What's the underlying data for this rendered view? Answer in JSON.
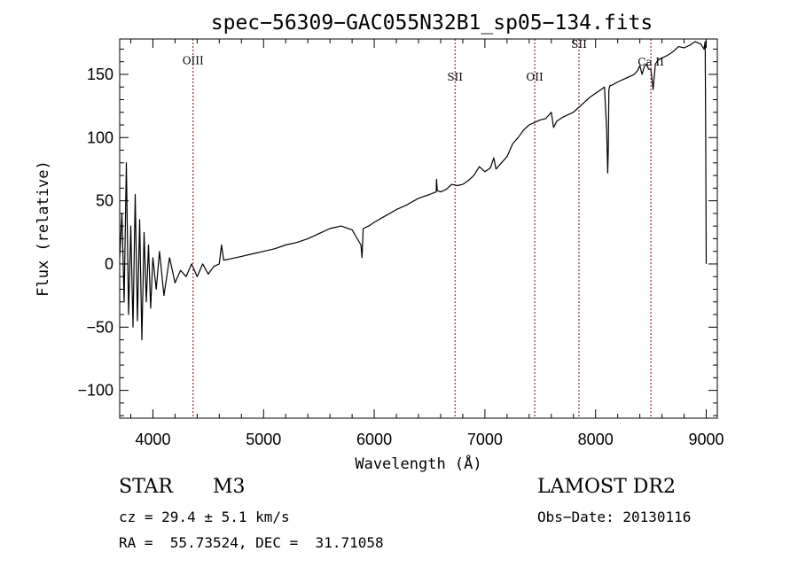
{
  "chart_data": {
    "type": "line",
    "title": "spec−56309−GAC055N32B1_sp05−134.fits",
    "xlabel": "Wavelength (Å)",
    "ylabel": "Flux (relative)",
    "xlim": [
      3700,
      9100
    ],
    "ylim": [
      -122,
      178
    ],
    "x_ticks": [
      4000,
      5000,
      6000,
      7000,
      8000,
      9000
    ],
    "y_ticks": [
      -100,
      -50,
      0,
      50,
      100,
      150
    ],
    "x_tick_labels": [
      "4000",
      "5000",
      "6000",
      "7000",
      "8000",
      "9000"
    ],
    "y_tick_labels": [
      "−100",
      "−50",
      "0",
      "50",
      "100",
      "150"
    ],
    "grid": false,
    "line_color": "#000000",
    "marker_color": "#8b0000",
    "spectral_lines": [
      {
        "label": "OIII",
        "x": 4363,
        "label_y": 158
      },
      {
        "label": "SII",
        "x": 6730,
        "label_y": 145
      },
      {
        "label": "OII",
        "x": 7450,
        "label_y": 145
      },
      {
        "label": "SII",
        "x": 7850,
        "label_y": 171
      },
      {
        "label": "Ca II",
        "x": 8500,
        "label_y": 157
      }
    ],
    "series": [
      {
        "x": [
          3700,
          3720,
          3740,
          3760,
          3780,
          3800,
          3820,
          3840,
          3860,
          3880,
          3900,
          3920,
          3940,
          3960,
          3980,
          4000,
          4030,
          4060,
          4100,
          4150,
          4200,
          4250,
          4300,
          4350,
          4400,
          4450,
          4500,
          4550,
          4600,
          4620,
          4640,
          4700,
          4800,
          4900,
          5000,
          5100,
          5200,
          5300,
          5400,
          5500,
          5600,
          5700,
          5800,
          5880,
          5890,
          5900,
          5950,
          6000,
          6100,
          6200,
          6300,
          6400,
          6500,
          6560,
          6563,
          6570,
          6600,
          6650,
          6700,
          6750,
          6800,
          6850,
          6900,
          6950,
          7000,
          7050,
          7080,
          7100,
          7150,
          7200,
          7250,
          7300,
          7350,
          7400,
          7450,
          7500,
          7550,
          7600,
          7620,
          7650,
          7700,
          7750,
          7800,
          7850,
          7900,
          7950,
          8000,
          8050,
          8080,
          8100,
          8110,
          8115,
          8120,
          8130,
          8160,
          8200,
          8250,
          8300,
          8350,
          8380,
          8400,
          8420,
          8440,
          8460,
          8480,
          8500,
          8520,
          8540,
          8560,
          8600,
          8650,
          8700,
          8750,
          8800,
          8850,
          8900,
          8950,
          8980,
          8990,
          8995,
          9000
        ],
        "y": [
          5,
          40,
          -30,
          80,
          -40,
          30,
          -50,
          55,
          -45,
          35,
          -60,
          25,
          -30,
          15,
          -35,
          5,
          -20,
          10,
          -25,
          5,
          -15,
          -5,
          -10,
          0,
          -10,
          0,
          -8,
          -2,
          0,
          15,
          3,
          4,
          6,
          8,
          10,
          12,
          15,
          17,
          20,
          24,
          28,
          30,
          27,
          15,
          5,
          28,
          30,
          33,
          38,
          43,
          47,
          52,
          55,
          57,
          67,
          58,
          57,
          59,
          63,
          62,
          63,
          66,
          70,
          77,
          73,
          76,
          84,
          75,
          80,
          85,
          95,
          100,
          106,
          110,
          112,
          114,
          115,
          120,
          108,
          113,
          116,
          118,
          120,
          124,
          128,
          132,
          135,
          138,
          140,
          106,
          72,
          92,
          138,
          141,
          142,
          144,
          146,
          148,
          150,
          153,
          157,
          150,
          156,
          158,
          154,
          154,
          138,
          158,
          161,
          163,
          165,
          168,
          172,
          171,
          173,
          176,
          174,
          170,
          176,
          100,
          0
        ]
      }
    ]
  },
  "info": {
    "object_type": "STAR",
    "subclass": "M3",
    "survey": "LAMOST DR2",
    "redshift": "cz = 29.4 ± 5.1 km/s",
    "obs_date": "Obs−Date: 20130116",
    "coords": "RA =  55.73524, DEC =  31.71058"
  }
}
